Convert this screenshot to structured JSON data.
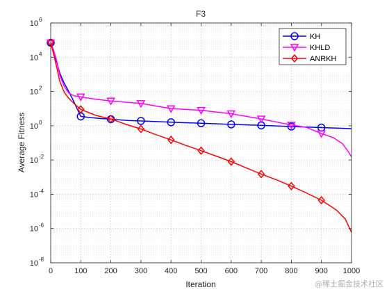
{
  "chart_data": {
    "type": "line",
    "title": "F3",
    "xlabel": "Iteration",
    "ylabel": "Average Fitness",
    "xlim": [
      0,
      1000
    ],
    "ylim": [
      1e-08,
      1000000.0
    ],
    "yscale": "log",
    "grid": true,
    "legend_position": "top-right",
    "x_ticks": [
      "0",
      "100",
      "200",
      "300",
      "400",
      "500",
      "600",
      "700",
      "800",
      "900",
      "1000"
    ],
    "y_ticks": [
      {
        "base": "10",
        "exp": "-8",
        "value": 1e-08
      },
      {
        "base": "10",
        "exp": "-6",
        "value": 1e-06
      },
      {
        "base": "10",
        "exp": "-4",
        "value": 0.0001
      },
      {
        "base": "10",
        "exp": "-2",
        "value": 0.01
      },
      {
        "base": "10",
        "exp": "0",
        "value": 1
      },
      {
        "base": "10",
        "exp": "2",
        "value": 100
      },
      {
        "base": "10",
        "exp": "4",
        "value": 10000.0
      },
      {
        "base": "10",
        "exp": "6",
        "value": 1000000.0
      }
    ],
    "series": [
      {
        "name": "KH",
        "color": "#0000ff",
        "marker": "circle",
        "line": [
          [
            0,
            70000
          ],
          [
            10,
            20000
          ],
          [
            20,
            5000
          ],
          [
            30,
            1200
          ],
          [
            45,
            300
          ],
          [
            60,
            100
          ],
          [
            75,
            30
          ],
          [
            90,
            8
          ],
          [
            100,
            3.5
          ],
          [
            130,
            3
          ],
          [
            160,
            2.7
          ],
          [
            200,
            2.4
          ],
          [
            260,
            2.0
          ],
          [
            300,
            1.9
          ],
          [
            400,
            1.6
          ],
          [
            500,
            1.4
          ],
          [
            600,
            1.2
          ],
          [
            700,
            1.05
          ],
          [
            800,
            0.9
          ],
          [
            900,
            0.78
          ],
          [
            1000,
            0.68
          ]
        ],
        "markers": [
          [
            0,
            70000
          ],
          [
            100,
            3.5
          ],
          [
            200,
            2.4
          ],
          [
            300,
            1.9
          ],
          [
            400,
            1.6
          ],
          [
            500,
            1.4
          ],
          [
            600,
            1.2
          ],
          [
            700,
            1.05
          ],
          [
            800,
            0.9
          ],
          [
            900,
            0.78
          ]
        ]
      },
      {
        "name": "KHLD",
        "color": "#ff00ff",
        "marker": "triangle-down",
        "line": [
          [
            0,
            70000
          ],
          [
            10,
            25000
          ],
          [
            20,
            6000
          ],
          [
            30,
            900
          ],
          [
            45,
            200
          ],
          [
            60,
            80
          ],
          [
            80,
            55
          ],
          [
            100,
            48
          ],
          [
            150,
            35
          ],
          [
            200,
            28
          ],
          [
            300,
            20
          ],
          [
            400,
            10
          ],
          [
            500,
            8
          ],
          [
            600,
            5
          ],
          [
            700,
            2.5
          ],
          [
            800,
            1.1
          ],
          [
            850,
            0.8
          ],
          [
            900,
            0.35
          ],
          [
            940,
            0.2
          ],
          [
            970,
            0.09
          ],
          [
            990,
            0.03
          ],
          [
            1000,
            0.015
          ]
        ],
        "markers": [
          [
            0,
            70000
          ],
          [
            100,
            48
          ],
          [
            200,
            28
          ],
          [
            300,
            20
          ],
          [
            400,
            10
          ],
          [
            500,
            8
          ],
          [
            600,
            5
          ],
          [
            700,
            2.5
          ],
          [
            800,
            1.1
          ],
          [
            900,
            0.35
          ]
        ]
      },
      {
        "name": "ANRKH",
        "color": "#ff0000",
        "marker": "diamond",
        "line": [
          [
            0,
            70000
          ],
          [
            10,
            15000
          ],
          [
            20,
            2500
          ],
          [
            30,
            400
          ],
          [
            45,
            90
          ],
          [
            60,
            40
          ],
          [
            80,
            18
          ],
          [
            100,
            9
          ],
          [
            150,
            4
          ],
          [
            200,
            2.5
          ],
          [
            250,
            1.2
          ],
          [
            300,
            0.65
          ],
          [
            350,
            0.3
          ],
          [
            400,
            0.15
          ],
          [
            450,
            0.07
          ],
          [
            500,
            0.035
          ],
          [
            550,
            0.017
          ],
          [
            600,
            0.008
          ],
          [
            650,
            0.0035
          ],
          [
            700,
            0.0015
          ],
          [
            750,
            0.0007
          ],
          [
            800,
            0.0003
          ],
          [
            850,
            0.00012
          ],
          [
            900,
            4.5e-05
          ],
          [
            950,
            1.2e-05
          ],
          [
            980,
            3.5e-06
          ],
          [
            1000,
            6e-07
          ]
        ],
        "markers": [
          [
            0,
            70000
          ],
          [
            100,
            9
          ],
          [
            200,
            2.5
          ],
          [
            300,
            0.65
          ],
          [
            400,
            0.15
          ],
          [
            500,
            0.035
          ],
          [
            600,
            0.008
          ],
          [
            700,
            0.0015
          ],
          [
            800,
            0.0003
          ],
          [
            900,
            4.5e-05
          ]
        ]
      }
    ]
  },
  "watermark": "@稀土掘金技术社区"
}
